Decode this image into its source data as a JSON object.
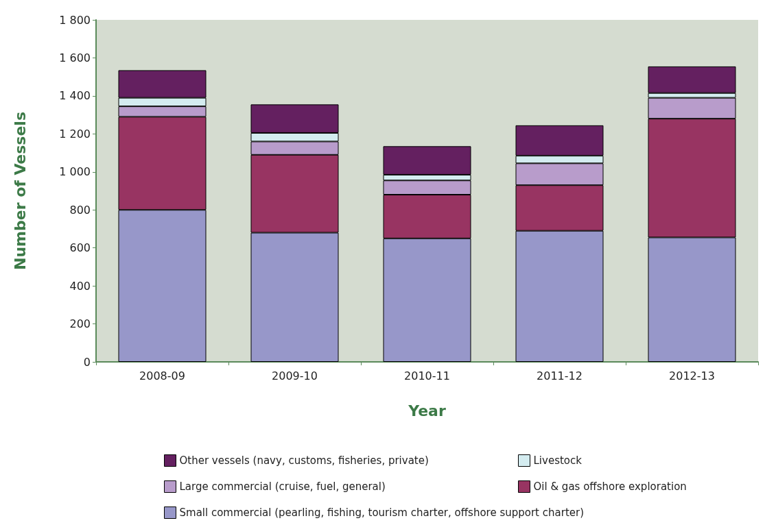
{
  "chart_data": {
    "type": "bar",
    "stacked": true,
    "xlabel": "Year",
    "ylabel": "Number of Vessels",
    "categories": [
      "2008-09",
      "2009-10",
      "2010-11",
      "2011-12",
      "2012-13"
    ],
    "series": [
      {
        "name": "Small commercial (pearling, fishing, tourism charter, offshore support charter)",
        "color": "#9797c9",
        "values": [
          800,
          680,
          650,
          690,
          655
        ]
      },
      {
        "name": "Oil & gas offshore exploration",
        "color": "#983462",
        "values": [
          490,
          410,
          230,
          240,
          625
        ]
      },
      {
        "name": "Large commercial (cruise, fuel, general)",
        "color": "#b89ccb",
        "values": [
          55,
          70,
          75,
          115,
          110
        ]
      },
      {
        "name": "Livestock",
        "color": "#d4ecf0",
        "values": [
          45,
          45,
          30,
          40,
          25
        ]
      },
      {
        "name": "Other vessels (navy, customs, fisheries, private)",
        "color": "#642060",
        "values": [
          145,
          150,
          150,
          160,
          140
        ]
      }
    ],
    "ylim": [
      0,
      1800
    ],
    "yticks": [
      0,
      200,
      400,
      600,
      800,
      {
        "value": 1000,
        "label": "1 000"
      },
      {
        "value": 1200,
        "label": "1 200"
      },
      {
        "value": 1400,
        "label": "1 400"
      },
      {
        "value": 1600,
        "label": "1 600"
      },
      {
        "value": 1800,
        "label": "1 800"
      }
    ],
    "grid": false,
    "legend": "bottom"
  }
}
